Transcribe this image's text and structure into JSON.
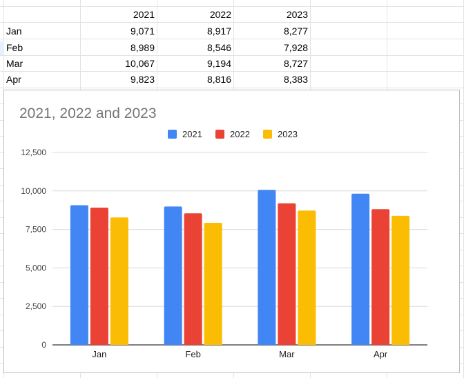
{
  "sheet": {
    "header": [
      "",
      "2021",
      "2022",
      "2023"
    ],
    "rows": [
      {
        "label": "Jan",
        "v2021": "9,071",
        "v2022": "8,917",
        "v2023": "8,277"
      },
      {
        "label": "Feb",
        "v2021": "8,989",
        "v2022": "8,546",
        "v2023": "7,928"
      },
      {
        "label": "Mar",
        "v2021": "10,067",
        "v2022": "9,194",
        "v2023": "8,727"
      },
      {
        "label": "Apr",
        "v2021": "9,823",
        "v2022": "8,816",
        "v2023": "8,383"
      }
    ]
  },
  "chart_data": {
    "type": "bar",
    "title": "2021, 2022 and 2023",
    "categories": [
      "Jan",
      "Feb",
      "Mar",
      "Apr"
    ],
    "series": [
      {
        "name": "2021",
        "color": "#4285f4",
        "values": [
          9071,
          8989,
          10067,
          9823
        ]
      },
      {
        "name": "2022",
        "color": "#ea4335",
        "values": [
          8917,
          8546,
          9194,
          8816
        ]
      },
      {
        "name": "2023",
        "color": "#fbbc04",
        "values": [
          8277,
          7928,
          8727,
          8383
        ]
      }
    ],
    "ylim": [
      0,
      12500
    ],
    "yticks": [
      0,
      2500,
      5000,
      7500,
      10000,
      12500
    ],
    "ytick_labels": [
      "0",
      "2,500",
      "5,000",
      "7,500",
      "10,000",
      "12,500"
    ],
    "legend_position": "top-center",
    "grid": true,
    "xlabel": "",
    "ylabel": ""
  }
}
